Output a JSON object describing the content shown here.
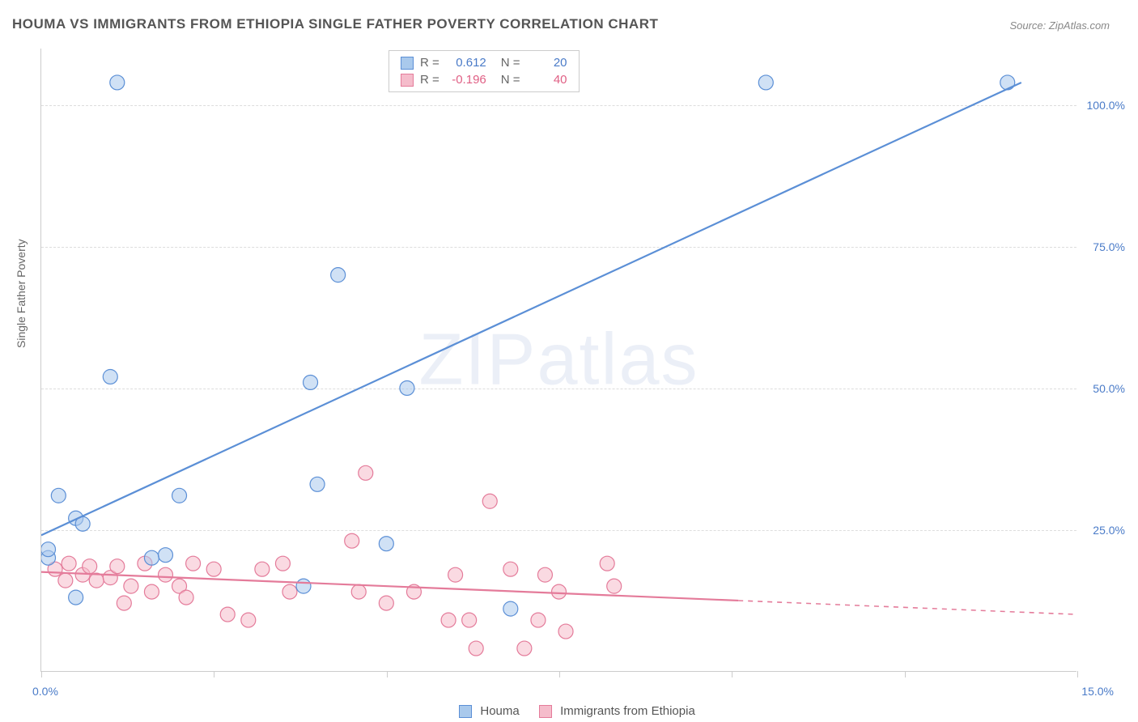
{
  "title": "HOUMA VS IMMIGRANTS FROM ETHIOPIA SINGLE FATHER POVERTY CORRELATION CHART",
  "source": "Source: ZipAtlas.com",
  "y_axis_label": "Single Father Poverty",
  "watermark": "ZIPatlas",
  "chart": {
    "type": "scatter",
    "xlim": [
      0,
      15
    ],
    "ylim": [
      0,
      110
    ],
    "x_ticks": [
      0,
      2.5,
      5.0,
      7.5,
      10.0,
      12.5,
      15.0
    ],
    "y_gridlines": [
      25,
      50,
      75,
      100
    ],
    "x_tick_labels": {
      "first": "0.0%",
      "last": "15.0%"
    },
    "y_tick_labels": [
      "25.0%",
      "50.0%",
      "75.0%",
      "100.0%"
    ],
    "background_color": "#ffffff",
    "grid_color": "#dddddd",
    "axis_color": "#cccccc",
    "marker_radius": 9,
    "marker_opacity": 0.55,
    "marker_stroke_width": 1.2,
    "trend_line_width": 2.2,
    "label_color": "#4a7bc8",
    "label_fontsize": 14
  },
  "series": {
    "houma": {
      "label": "Houma",
      "fill": "#a9c9ec",
      "stroke": "#5b8fd6",
      "r_value": "0.612",
      "n_value": "20",
      "value_color": "#4a7bc8",
      "trend": {
        "x1": 0,
        "y1": 24,
        "x2": 14.2,
        "y2": 104,
        "solid_end": 14.2
      },
      "points": [
        {
          "x": 0.1,
          "y": 20
        },
        {
          "x": 0.1,
          "y": 21.5
        },
        {
          "x": 0.25,
          "y": 31
        },
        {
          "x": 0.5,
          "y": 27
        },
        {
          "x": 0.6,
          "y": 26
        },
        {
          "x": 0.5,
          "y": 13
        },
        {
          "x": 1.0,
          "y": 52
        },
        {
          "x": 1.1,
          "y": 104
        },
        {
          "x": 1.6,
          "y": 20
        },
        {
          "x": 1.8,
          "y": 20.5
        },
        {
          "x": 2.0,
          "y": 31
        },
        {
          "x": 3.8,
          "y": 15
        },
        {
          "x": 3.9,
          "y": 51
        },
        {
          "x": 4.0,
          "y": 33
        },
        {
          "x": 4.3,
          "y": 70
        },
        {
          "x": 5.0,
          "y": 22.5
        },
        {
          "x": 5.3,
          "y": 50
        },
        {
          "x": 6.8,
          "y": 11
        },
        {
          "x": 10.5,
          "y": 104
        },
        {
          "x": 14.0,
          "y": 104
        }
      ]
    },
    "ethiopia": {
      "label": "Immigrants from Ethiopia",
      "fill": "#f5bccb",
      "stroke": "#e47b9a",
      "r_value": "-0.196",
      "n_value": "40",
      "value_color": "#e06085",
      "trend": {
        "x1": 0,
        "y1": 17.5,
        "x2": 15,
        "y2": 10,
        "solid_end": 10.1
      },
      "points": [
        {
          "x": 0.2,
          "y": 18
        },
        {
          "x": 0.35,
          "y": 16
        },
        {
          "x": 0.4,
          "y": 19
        },
        {
          "x": 0.6,
          "y": 17
        },
        {
          "x": 0.7,
          "y": 18.5
        },
        {
          "x": 0.8,
          "y": 16
        },
        {
          "x": 1.0,
          "y": 16.5
        },
        {
          "x": 1.1,
          "y": 18.5
        },
        {
          "x": 1.2,
          "y": 12
        },
        {
          "x": 1.3,
          "y": 15
        },
        {
          "x": 1.5,
          "y": 19
        },
        {
          "x": 1.6,
          "y": 14
        },
        {
          "x": 1.8,
          "y": 17
        },
        {
          "x": 2.0,
          "y": 15
        },
        {
          "x": 2.1,
          "y": 13
        },
        {
          "x": 2.2,
          "y": 19
        },
        {
          "x": 2.5,
          "y": 18
        },
        {
          "x": 2.7,
          "y": 10
        },
        {
          "x": 3.0,
          "y": 9
        },
        {
          "x": 3.2,
          "y": 18
        },
        {
          "x": 3.5,
          "y": 19
        },
        {
          "x": 3.6,
          "y": 14
        },
        {
          "x": 4.5,
          "y": 23
        },
        {
          "x": 4.6,
          "y": 14
        },
        {
          "x": 4.7,
          "y": 35
        },
        {
          "x": 5.0,
          "y": 12
        },
        {
          "x": 5.4,
          "y": 14
        },
        {
          "x": 5.9,
          "y": 9
        },
        {
          "x": 6.0,
          "y": 17
        },
        {
          "x": 6.2,
          "y": 9
        },
        {
          "x": 6.3,
          "y": 4
        },
        {
          "x": 6.5,
          "y": 30
        },
        {
          "x": 6.8,
          "y": 18
        },
        {
          "x": 7.0,
          "y": 4
        },
        {
          "x": 7.2,
          "y": 9
        },
        {
          "x": 7.3,
          "y": 17
        },
        {
          "x": 7.5,
          "y": 14
        },
        {
          "x": 7.6,
          "y": 7
        },
        {
          "x": 8.2,
          "y": 19
        },
        {
          "x": 8.3,
          "y": 15
        }
      ]
    }
  },
  "legend_top": {
    "r_label": "R =",
    "n_label": "N ="
  }
}
